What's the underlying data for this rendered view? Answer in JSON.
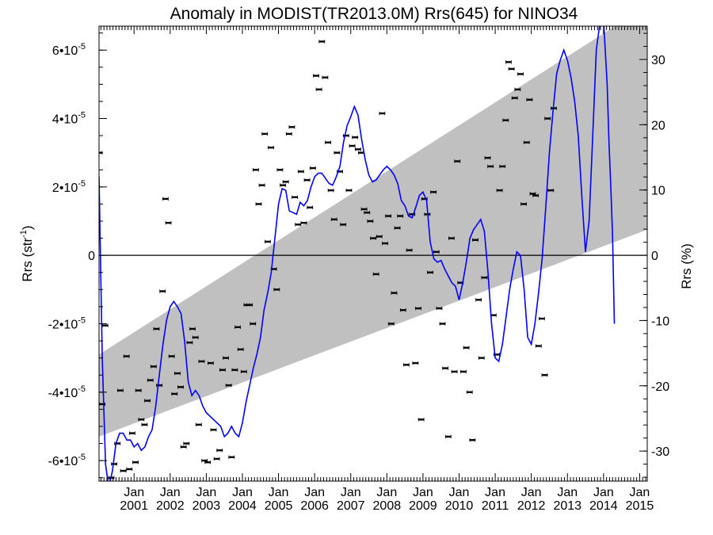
{
  "chart_data": {
    "type": "line",
    "title": "Anomaly in MODIST(TR2013.0M) Rrs(645) for NINO34",
    "ylabel_left": {
      "main": "Rrs (str",
      "sup": "-1",
      "close": ")"
    },
    "ylabel_right": "Rrs (%)",
    "xlim": [
      2000.03,
      2015.21
    ],
    "ylim_left": [
      -6.6e-05,
      6.7e-05
    ],
    "ylim_right": [
      -34.6,
      35.1
    ],
    "left_ticks": [
      {
        "value": -6e-05,
        "mant": "-6",
        "exp": "-5"
      },
      {
        "value": -4e-05,
        "mant": "-4",
        "exp": "-5"
      },
      {
        "value": -2e-05,
        "mant": "-2",
        "exp": "-5"
      },
      {
        "value": 0,
        "mant": "0",
        "exp": ""
      },
      {
        "value": 2e-05,
        "mant": "2",
        "exp": "-5"
      },
      {
        "value": 4e-05,
        "mant": "4",
        "exp": "-5"
      },
      {
        "value": 6e-05,
        "mant": "6",
        "exp": "-5"
      }
    ],
    "right_ticks": [
      {
        "value": -30,
        "label": "-30"
      },
      {
        "value": -20,
        "label": "-20"
      },
      {
        "value": -10,
        "label": "-10"
      },
      {
        "value": 0,
        "label": "0"
      },
      {
        "value": 10,
        "label": "10"
      },
      {
        "value": 20,
        "label": "20"
      },
      {
        "value": 30,
        "label": "30"
      }
    ],
    "x_ticks": [
      {
        "value": 2001.0,
        "month": "Jan",
        "year": "2001"
      },
      {
        "value": 2002.0,
        "month": "Jan",
        "year": "2002"
      },
      {
        "value": 2003.0,
        "month": "Jan",
        "year": "2003"
      },
      {
        "value": 2004.0,
        "month": "Jan",
        "year": "2004"
      },
      {
        "value": 2005.0,
        "month": "Jan",
        "year": "2005"
      },
      {
        "value": 2006.0,
        "month": "Jan",
        "year": "2006"
      },
      {
        "value": 2007.0,
        "month": "Jan",
        "year": "2007"
      },
      {
        "value": 2008.0,
        "month": "Jan",
        "year": "2008"
      },
      {
        "value": 2009.0,
        "month": "Jan",
        "year": "2009"
      },
      {
        "value": 2010.0,
        "month": "Jan",
        "year": "2010"
      },
      {
        "value": 2011.0,
        "month": "Jan",
        "year": "2011"
      },
      {
        "value": 2012.0,
        "month": "Jan",
        "year": "2012"
      },
      {
        "value": 2013.0,
        "month": "Jan",
        "year": "2013"
      },
      {
        "value": 2014.0,
        "month": "Jan",
        "year": "2014"
      },
      {
        "value": 2015.0,
        "month": "Jan",
        "year": "2015"
      }
    ],
    "trend_band": {
      "x": [
        2000.03,
        2015.21
      ],
      "lower": [
        -5.3e-05,
        7.5e-06
      ],
      "upper": [
        -2.9e-05,
        7.3e-05
      ],
      "color": "#c0c0c0"
    },
    "zero_line": 0,
    "line_color": "#0000ff",
    "smoothed_series": [
      [
        2000.03,
        2.3e-05
      ],
      [
        2000.12,
        -3e-05
      ],
      [
        2000.21,
        -6.1e-05
      ],
      [
        2000.3,
        -6.8e-05
      ],
      [
        2000.4,
        -6.3e-05
      ],
      [
        2000.5,
        -5.5e-05
      ],
      [
        2000.6,
        -5.2e-05
      ],
      [
        2000.7,
        -5.2e-05
      ],
      [
        2000.8,
        -5.4e-05
      ],
      [
        2000.9,
        -5.4e-05
      ],
      [
        2001.0,
        -5.6e-05
      ],
      [
        2001.1,
        -5.5e-05
      ],
      [
        2001.2,
        -5.7e-05
      ],
      [
        2001.3,
        -5.6e-05
      ],
      [
        2001.4,
        -5.3e-05
      ],
      [
        2001.5,
        -5.1e-05
      ],
      [
        2001.6,
        -4.4e-05
      ],
      [
        2001.7,
        -3.5e-05
      ],
      [
        2001.8,
        -2.6e-05
      ],
      [
        2001.9,
        -1.9e-05
      ],
      [
        2002.0,
        -1.5e-05
      ],
      [
        2002.1,
        -1.35e-05
      ],
      [
        2002.2,
        -1.5e-05
      ],
      [
        2002.3,
        -1.7e-05
      ],
      [
        2002.4,
        -2.5e-05
      ],
      [
        2002.5,
        -3.7e-05
      ],
      [
        2002.6,
        -4.1e-05
      ],
      [
        2002.7,
        -3.95e-05
      ],
      [
        2002.8,
        -4.1e-05
      ],
      [
        2002.9,
        -4.4e-05
      ],
      [
        2003.0,
        -4.6e-05
      ],
      [
        2003.2,
        -4.8e-05
      ],
      [
        2003.4,
        -5e-05
      ],
      [
        2003.5,
        -5.3e-05
      ],
      [
        2003.6,
        -5.2e-05
      ],
      [
        2003.7,
        -5e-05
      ],
      [
        2003.8,
        -5.2e-05
      ],
      [
        2003.9,
        -5.3e-05
      ],
      [
        2004.0,
        -4.9e-05
      ],
      [
        2004.1,
        -4.3e-05
      ],
      [
        2004.2,
        -3.8e-05
      ],
      [
        2004.3,
        -3.3e-05
      ],
      [
        2004.4,
        -2.9e-05
      ],
      [
        2004.5,
        -2.4e-05
      ],
      [
        2004.6,
        -1.6e-05
      ],
      [
        2004.7,
        -1.1e-05
      ],
      [
        2004.8,
        -5e-06
      ],
      [
        2004.9,
        5e-06
      ],
      [
        2005.0,
        1.5e-05
      ],
      [
        2005.1,
        1.95e-05
      ],
      [
        2005.2,
        1.9e-05
      ],
      [
        2005.3,
        1.3e-05
      ],
      [
        2005.4,
        1.25e-05
      ],
      [
        2005.5,
        1.2e-05
      ],
      [
        2005.6,
        1.55e-05
      ],
      [
        2005.7,
        1.45e-05
      ],
      [
        2005.8,
        1.6e-05
      ],
      [
        2005.9,
        2e-05
      ],
      [
        2006.0,
        2.3e-05
      ],
      [
        2006.1,
        2.4e-05
      ],
      [
        2006.2,
        2.4e-05
      ],
      [
        2006.3,
        2.25e-05
      ],
      [
        2006.4,
        2.1e-05
      ],
      [
        2006.5,
        2.05e-05
      ],
      [
        2006.6,
        2.3e-05
      ],
      [
        2006.7,
        2.6e-05
      ],
      [
        2006.8,
        3.3e-05
      ],
      [
        2006.9,
        3.8e-05
      ],
      [
        2007.0,
        4.05e-05
      ],
      [
        2007.1,
        4.35e-05
      ],
      [
        2007.2,
        4.1e-05
      ],
      [
        2007.3,
        3.4e-05
      ],
      [
        2007.4,
        2.8e-05
      ],
      [
        2007.5,
        2.35e-05
      ],
      [
        2007.6,
        2.15e-05
      ],
      [
        2007.7,
        2.2e-05
      ],
      [
        2007.8,
        2.35e-05
      ],
      [
        2007.9,
        2.5e-05
      ],
      [
        2008.0,
        2.6e-05
      ],
      [
        2008.1,
        2.5e-05
      ],
      [
        2008.2,
        2.35e-05
      ],
      [
        2008.3,
        2.1e-05
      ],
      [
        2008.4,
        1.6e-05
      ],
      [
        2008.5,
        1.45e-05
      ],
      [
        2008.6,
        1.15e-05
      ],
      [
        2008.7,
        1.1e-05
      ],
      [
        2008.8,
        1.4e-05
      ],
      [
        2008.9,
        1.75e-05
      ],
      [
        2009.0,
        1.85e-05
      ],
      [
        2009.1,
        1.6e-05
      ],
      [
        2009.2,
        4e-06
      ],
      [
        2009.3,
        -1e-06
      ],
      [
        2009.4,
        -2e-06
      ],
      [
        2009.5,
        -1.5e-06
      ],
      [
        2009.6,
        -4e-06
      ],
      [
        2009.7,
        -6e-06
      ],
      [
        2009.8,
        -8e-06
      ],
      [
        2009.9,
        -9e-06
      ],
      [
        2010.0,
        -1.3e-05
      ],
      [
        2010.1,
        -8e-06
      ],
      [
        2010.2,
        -2e-06
      ],
      [
        2010.3,
        5e-06
      ],
      [
        2010.4,
        7.5e-06
      ],
      [
        2010.5,
        9e-06
      ],
      [
        2010.6,
        1.05e-05
      ],
      [
        2010.7,
        7e-06
      ],
      [
        2010.8,
        -5e-06
      ],
      [
        2010.9,
        -2e-05
      ],
      [
        2011.0,
        -3e-05
      ],
      [
        2011.1,
        -3.1e-05
      ],
      [
        2011.2,
        -2.6e-05
      ],
      [
        2011.3,
        -1.8e-05
      ],
      [
        2011.4,
        -1e-05
      ],
      [
        2011.5,
        -4e-06
      ],
      [
        2011.6,
        1e-06
      ],
      [
        2011.7,
        0.0
      ],
      [
        2011.8,
        -1e-05
      ],
      [
        2011.9,
        -2.4e-05
      ],
      [
        2012.0,
        -2.6e-05
      ],
      [
        2012.1,
        -2e-05
      ],
      [
        2012.2,
        -1.1e-05
      ],
      [
        2012.3,
        -1e-06
      ],
      [
        2012.4,
        1.4e-05
      ],
      [
        2012.5,
        3e-05
      ],
      [
        2012.6,
        4.2e-05
      ],
      [
        2012.7,
        5.3e-05
      ],
      [
        2012.8,
        5.7e-05
      ],
      [
        2012.9,
        6e-05
      ],
      [
        2013.0,
        5.7e-05
      ],
      [
        2013.1,
        5.2e-05
      ],
      [
        2013.2,
        4.5e-05
      ],
      [
        2013.3,
        3.5e-05
      ],
      [
        2013.4,
        1.7e-05
      ],
      [
        2013.5,
        1e-06
      ],
      [
        2013.6,
        1e-05
      ],
      [
        2013.7,
        3.5e-05
      ],
      [
        2013.8,
        6e-05
      ],
      [
        2013.9,
        6.8e-05
      ],
      [
        2014.0,
        6.9e-05
      ],
      [
        2014.1,
        5e-05
      ],
      [
        2014.15,
        3.3e-05
      ],
      [
        2014.2,
        2e-05
      ],
      [
        2014.25,
        6e-06
      ],
      [
        2014.3,
        -2e-05
      ]
    ],
    "monthly_points": [
      [
        2000.04,
        3e-05
      ],
      [
        2000.12,
        -4.35e-05
      ],
      [
        2000.2,
        -2.05e-05
      ],
      [
        2000.37,
        -6.5e-05
      ],
      [
        2000.45,
        -6.1e-05
      ],
      [
        2000.54,
        -5.5e-05
      ],
      [
        2000.62,
        -3.95e-05
      ],
      [
        2000.7,
        -6.3e-05
      ],
      [
        2000.79,
        -2.95e-05
      ],
      [
        2000.87,
        -6.25e-05
      ],
      [
        2000.95,
        -5.2e-05
      ],
      [
        2001.04,
        -6.05e-05
      ],
      [
        2001.12,
        -3.95e-05
      ],
      [
        2001.2,
        -4.8e-05
      ],
      [
        2001.29,
        -4.95e-05
      ],
      [
        2001.37,
        -4.25e-05
      ],
      [
        2001.45,
        -3.65e-05
      ],
      [
        2001.54,
        -3.25e-05
      ],
      [
        2001.62,
        -2.15e-05
      ],
      [
        2001.7,
        -3.8e-05
      ],
      [
        2001.79,
        -1.05e-05
      ],
      [
        2001.87,
        1.65e-05
      ],
      [
        2001.95,
        9.5e-06
      ],
      [
        2002.04,
        -2.95e-05
      ],
      [
        2002.12,
        -4.05e-05
      ],
      [
        2002.2,
        -3.45e-05
      ],
      [
        2002.29,
        -3.85e-05
      ],
      [
        2002.37,
        -5.6e-05
      ],
      [
        2002.45,
        -5.5e-05
      ],
      [
        2002.54,
        -2.55e-05
      ],
      [
        2002.62,
        -2.15e-05
      ],
      [
        2002.7,
        -2.4e-05
      ],
      [
        2002.79,
        -4.95e-05
      ],
      [
        2002.87,
        -3.1e-05
      ],
      [
        2002.95,
        -6e-05
      ],
      [
        2003.04,
        -6.05e-05
      ],
      [
        2003.12,
        -3.15e-05
      ],
      [
        2003.2,
        -5.1e-05
      ],
      [
        2003.29,
        -5.95e-05
      ],
      [
        2003.37,
        -5.7e-05
      ],
      [
        2003.45,
        -3.35e-05
      ],
      [
        2003.54,
        -3e-05
      ],
      [
        2003.62,
        -3.8e-05
      ],
      [
        2003.7,
        -5.9e-05
      ],
      [
        2003.79,
        -3.35e-05
      ],
      [
        2003.87,
        -2.1e-05
      ],
      [
        2003.95,
        -2.75e-05
      ],
      [
        2004.04,
        -3.4e-05
      ],
      [
        2004.12,
        -1.45e-05
      ],
      [
        2004.2,
        -1.45e-05
      ],
      [
        2004.29,
        -2e-05
      ],
      [
        2004.37,
        2.5e-05
      ],
      [
        2004.45,
        1.5e-05
      ],
      [
        2004.54,
        2.05e-05
      ],
      [
        2004.62,
        3.55e-05
      ],
      [
        2004.7,
        4e-06
      ],
      [
        2004.79,
        3.15e-05
      ],
      [
        2004.87,
        -4e-06
      ],
      [
        2004.95,
        -1e-05
      ],
      [
        2005.04,
        2.5e-05
      ],
      [
        2005.12,
        2.05e-05
      ],
      [
        2005.2,
        2.15e-05
      ],
      [
        2005.29,
        3.55e-05
      ],
      [
        2005.37,
        3.75e-05
      ],
      [
        2005.45,
        1.7e-05
      ],
      [
        2005.54,
        9e-06
      ],
      [
        2005.62,
        2.45e-05
      ],
      [
        2005.7,
        9.5e-06
      ],
      [
        2005.79,
        2.2e-05
      ],
      [
        2005.87,
        1.4e-05
      ],
      [
        2005.95,
        2.55e-05
      ],
      [
        2006.04,
        5.25e-05
      ],
      [
        2006.12,
        4.85e-05
      ],
      [
        2006.2,
        6.25e-05
      ],
      [
        2006.29,
        5.2e-05
      ],
      [
        2006.37,
        3.3e-05
      ],
      [
        2006.45,
        1.9e-05
      ],
      [
        2006.54,
        1.05e-05
      ],
      [
        2006.62,
        3e-05
      ],
      [
        2006.7,
        2.45e-05
      ],
      [
        2006.79,
        9e-06
      ],
      [
        2006.87,
        3.5e-05
      ],
      [
        2006.95,
        1.9e-05
      ],
      [
        2007.04,
        3.2e-05
      ],
      [
        2007.12,
        3.45e-05
      ],
      [
        2007.2,
        3.1e-05
      ],
      [
        2007.29,
        3e-05
      ],
      [
        2007.37,
        1.35e-05
      ],
      [
        2007.45,
        1.25e-05
      ],
      [
        2007.54,
        1e-05
      ],
      [
        2007.62,
        5e-06
      ],
      [
        2007.7,
        -5.5e-06
      ],
      [
        2007.79,
        5.5e-06
      ],
      [
        2007.87,
        4.15e-05
      ],
      [
        2007.95,
        3.5e-06
      ],
      [
        2008.04,
        1.15e-05
      ],
      [
        2008.12,
        -2e-05
      ],
      [
        2008.2,
        -1.1e-05
      ],
      [
        2008.29,
        8e-06
      ],
      [
        2008.37,
        1.15e-05
      ],
      [
        2008.45,
        -1.6e-05
      ],
      [
        2008.54,
        -3.2e-05
      ],
      [
        2008.62,
        1.5e-06
      ],
      [
        2008.7,
        1.2e-05
      ],
      [
        2008.79,
        -3.15e-05
      ],
      [
        2008.87,
        -1.55e-05
      ],
      [
        2008.95,
        -4.8e-05
      ],
      [
        2009.04,
        1.65e-05
      ],
      [
        2009.12,
        1.2e-05
      ],
      [
        2009.2,
        -5e-06
      ],
      [
        2009.29,
        1.85e-05
      ],
      [
        2009.37,
        1e-06
      ],
      [
        2009.45,
        -1.55e-05
      ],
      [
        2009.54,
        -2e-05
      ],
      [
        2009.62,
        -3.3e-05
      ],
      [
        2009.7,
        -5.3e-05
      ],
      [
        2009.79,
        5e-06
      ],
      [
        2009.87,
        -3.4e-05
      ],
      [
        2009.95,
        2.75e-05
      ],
      [
        2010.04,
        -8e-06
      ],
      [
        2010.12,
        -3.4e-05
      ],
      [
        2010.2,
        -2.7e-05
      ],
      [
        2010.29,
        -4e-05
      ],
      [
        2010.37,
        -5.4e-05
      ],
      [
        2010.45,
        4.5e-06
      ],
      [
        2010.54,
        -1.3e-05
      ],
      [
        2010.62,
        -3e-05
      ],
      [
        2010.7,
        -6.5e-06
      ],
      [
        2010.79,
        2.85e-05
      ],
      [
        2010.87,
        2.6e-05
      ],
      [
        2010.95,
        -1.75e-05
      ],
      [
        2011.04,
        -2.9e-05
      ],
      [
        2011.12,
        1.9e-05
      ],
      [
        2011.2,
        2.6e-05
      ],
      [
        2011.29,
        3.95e-05
      ],
      [
        2011.37,
        5.65e-05
      ],
      [
        2011.45,
        5.45e-05
      ],
      [
        2011.54,
        4.6e-05
      ],
      [
        2011.62,
        4.85e-05
      ],
      [
        2011.7,
        5.3e-05
      ],
      [
        2011.79,
        1.5e-05
      ],
      [
        2011.87,
        3.3e-05
      ],
      [
        2011.95,
        4.55e-05
      ],
      [
        2012.04,
        1.8e-05
      ],
      [
        2012.12,
        1.75e-05
      ],
      [
        2012.2,
        -2.65e-05
      ],
      [
        2012.29,
        -1.85e-05
      ],
      [
        2012.37,
        -3.5e-05
      ],
      [
        2012.45,
        4e-05
      ],
      [
        2012.54,
        1.9e-05
      ],
      [
        2012.62,
        4.3e-05
      ]
    ]
  }
}
